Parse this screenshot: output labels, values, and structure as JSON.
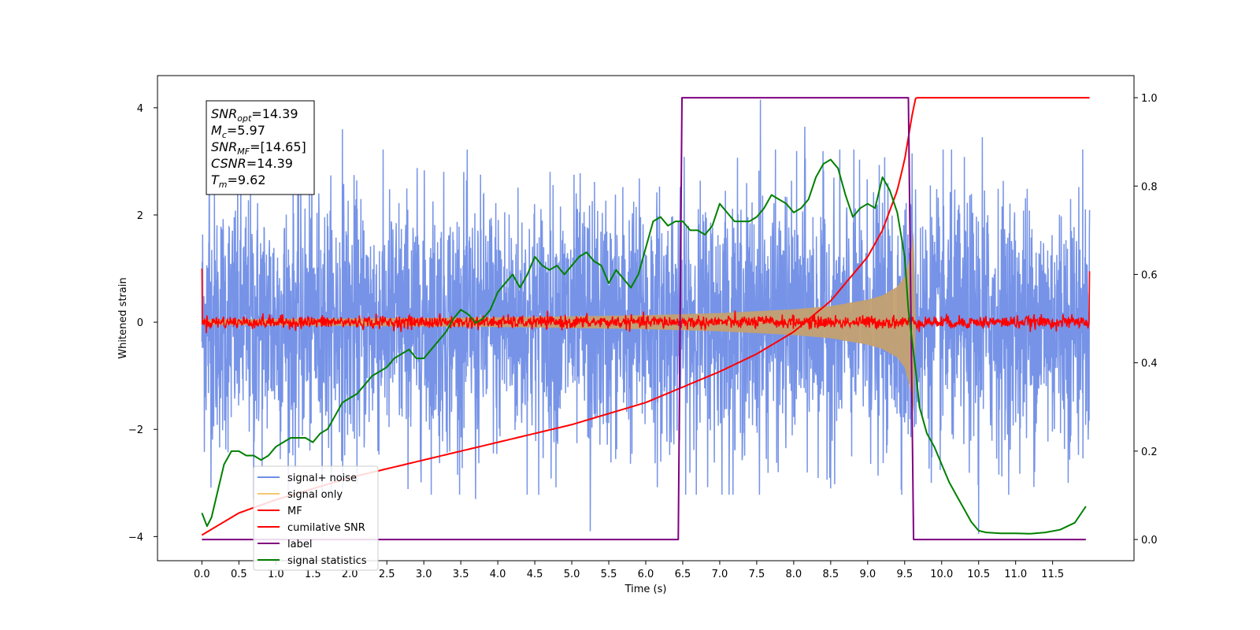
{
  "chart_data": {
    "type": "line",
    "xlabel": "Time (s)",
    "ylabel": "Whitened strain",
    "xlim": [
      -0.6,
      12.6
    ],
    "ylim_left": [
      -4.45,
      4.6
    ],
    "ylim_right": [
      -0.048,
      1.05
    ],
    "x_ticks": [
      0.0,
      0.5,
      1.0,
      1.5,
      2.0,
      2.5,
      3.0,
      3.5,
      4.0,
      4.5,
      5.0,
      5.5,
      6.0,
      6.5,
      7.0,
      7.5,
      8.0,
      8.5,
      9.0,
      9.5,
      10.0,
      10.5,
      11.0,
      11.5
    ],
    "x_tick_labels": [
      "0.0",
      "0.5",
      "1.0",
      "1.5",
      "2.0",
      "2.5",
      "3.0",
      "3.5",
      "4.0",
      "4.5",
      "5.0",
      "5.5",
      "6.0",
      "6.5",
      "7.0",
      "7.5",
      "8.0",
      "8.5",
      "9.0",
      "9.5",
      "10.0",
      "10.5",
      "11.0",
      "11.5"
    ],
    "y_ticks_left": [
      -4,
      -2,
      0,
      2,
      4
    ],
    "y_tick_labels_left": [
      "−4",
      "−2",
      "0",
      "2",
      "4"
    ],
    "y_ticks_right": [
      0.0,
      0.2,
      0.4,
      0.6,
      0.8,
      1.0
    ],
    "y_tick_labels_right": [
      "0.0",
      "0.2",
      "0.4",
      "0.6",
      "0.8",
      "1.0"
    ],
    "grid": false,
    "legend_position": "lower-left",
    "info_box": {
      "lines": [
        {
          "sym": "SNR",
          "sub": "opt",
          "val": "=14.39"
        },
        {
          "sym": "M",
          "sub": "c",
          "val": "=5.97"
        },
        {
          "sym": "SNR",
          "sub": "MF",
          "val": "=[14.65]"
        },
        {
          "sym": "CSNR",
          "sub": "",
          "val": "=14.39"
        },
        {
          "sym": "T",
          "sub": "m",
          "val": "=9.62"
        }
      ]
    },
    "series": [
      {
        "name": "signal+ noise",
        "color": "#6f8de6",
        "axis": "left",
        "kind": "noise_band",
        "x_range": [
          0.0,
          12.0
        ],
        "amplitude_envelope": {
          "x": [
            0.0,
            12.0
          ],
          "max": [
            2.8,
            2.8
          ],
          "min": [
            -2.8,
            -2.8
          ]
        },
        "peak_values": [
          {
            "x": 0.1,
            "y": 3.25
          },
          {
            "x": 0.7,
            "y": -3.3
          },
          {
            "x": 1.9,
            "y": 3.6
          },
          {
            "x": 3.7,
            "y": -3.3
          },
          {
            "x": 5.25,
            "y": -3.9
          },
          {
            "x": 7.55,
            "y": 4.15
          },
          {
            "x": 8.15,
            "y": 3.65
          },
          {
            "x": 9.6,
            "y": 3.15
          },
          {
            "x": 10.5,
            "y": -3.95
          },
          {
            "x": 10.55,
            "y": 3.45
          }
        ]
      },
      {
        "name": "signal only",
        "color": "#f5c86e",
        "axis": "left",
        "kind": "chirp_envelope",
        "x": [
          0.0,
          2.0,
          4.0,
          5.0,
          6.0,
          7.0,
          8.0,
          8.5,
          9.0,
          9.2,
          9.4,
          9.5,
          9.55,
          9.6,
          9.62
        ],
        "amplitude": [
          0.05,
          0.07,
          0.09,
          0.11,
          0.13,
          0.17,
          0.24,
          0.3,
          0.42,
          0.5,
          0.66,
          0.85,
          1.1,
          1.4,
          1.7
        ]
      },
      {
        "name": "MF",
        "color": "#ff0000",
        "axis": "left",
        "kind": "noise_band",
        "x_range": [
          0.0,
          12.0
        ],
        "amplitude": 0.12,
        "edge_values": [
          {
            "x": 0.0,
            "y": 1.0
          },
          {
            "x": 12.0,
            "y": 0.95
          }
        ]
      },
      {
        "name": "cumilative SNR",
        "color": "#ff0000",
        "axis": "right",
        "x": [
          0.0,
          0.5,
          1.0,
          2.0,
          3.0,
          4.0,
          5.0,
          6.0,
          7.0,
          7.5,
          8.0,
          8.5,
          9.0,
          9.2,
          9.4,
          9.5,
          9.55,
          9.6,
          9.65,
          12.0
        ],
        "y": [
          0.01,
          0.06,
          0.09,
          0.14,
          0.18,
          0.22,
          0.26,
          0.31,
          0.38,
          0.42,
          0.47,
          0.54,
          0.64,
          0.7,
          0.79,
          0.86,
          0.91,
          0.96,
          1.0,
          1.0
        ]
      },
      {
        "name": "label",
        "color": "#800080",
        "axis": "right",
        "x": [
          0.0,
          6.44,
          6.49,
          9.55,
          9.62,
          11.95
        ],
        "y": [
          0.0,
          0.0,
          1.0,
          1.0,
          0.0,
          0.0
        ]
      },
      {
        "name": "signal statistics",
        "color": "#008000",
        "axis": "right",
        "x": [
          0.0,
          0.07,
          0.13,
          0.2,
          0.3,
          0.4,
          0.5,
          0.6,
          0.7,
          0.8,
          0.9,
          1.0,
          1.1,
          1.2,
          1.3,
          1.4,
          1.5,
          1.6,
          1.7,
          1.8,
          1.9,
          2.0,
          2.1,
          2.2,
          2.3,
          2.4,
          2.5,
          2.6,
          2.7,
          2.8,
          2.9,
          3.0,
          3.1,
          3.2,
          3.3,
          3.4,
          3.5,
          3.6,
          3.7,
          3.8,
          3.9,
          4.0,
          4.1,
          4.2,
          4.3,
          4.4,
          4.5,
          4.6,
          4.7,
          4.8,
          4.9,
          5.0,
          5.1,
          5.2,
          5.3,
          5.4,
          5.5,
          5.6,
          5.7,
          5.8,
          5.9,
          6.0,
          6.1,
          6.2,
          6.3,
          6.4,
          6.5,
          6.6,
          6.7,
          6.8,
          6.9,
          7.0,
          7.1,
          7.2,
          7.3,
          7.4,
          7.5,
          7.6,
          7.7,
          7.8,
          7.9,
          8.0,
          8.1,
          8.2,
          8.3,
          8.4,
          8.5,
          8.6,
          8.7,
          8.8,
          8.9,
          9.0,
          9.1,
          9.2,
          9.3,
          9.4,
          9.5,
          9.55,
          9.6,
          9.65,
          9.7,
          9.8,
          9.9,
          10.0,
          10.1,
          10.2,
          10.3,
          10.4,
          10.5,
          10.6,
          10.8,
          11.0,
          11.2,
          11.4,
          11.6,
          11.8,
          11.95
        ],
        "y": [
          0.06,
          0.03,
          0.05,
          0.1,
          0.17,
          0.2,
          0.2,
          0.19,
          0.19,
          0.18,
          0.19,
          0.21,
          0.22,
          0.23,
          0.23,
          0.23,
          0.22,
          0.24,
          0.25,
          0.28,
          0.31,
          0.32,
          0.33,
          0.35,
          0.37,
          0.38,
          0.39,
          0.41,
          0.42,
          0.43,
          0.41,
          0.41,
          0.43,
          0.45,
          0.47,
          0.5,
          0.52,
          0.51,
          0.49,
          0.5,
          0.52,
          0.56,
          0.58,
          0.6,
          0.57,
          0.6,
          0.64,
          0.62,
          0.61,
          0.62,
          0.6,
          0.62,
          0.64,
          0.65,
          0.63,
          0.62,
          0.58,
          0.61,
          0.59,
          0.57,
          0.6,
          0.66,
          0.72,
          0.73,
          0.71,
          0.72,
          0.72,
          0.7,
          0.7,
          0.69,
          0.71,
          0.76,
          0.74,
          0.72,
          0.72,
          0.72,
          0.73,
          0.75,
          0.78,
          0.77,
          0.76,
          0.74,
          0.75,
          0.77,
          0.82,
          0.85,
          0.86,
          0.84,
          0.78,
          0.73,
          0.75,
          0.76,
          0.75,
          0.82,
          0.79,
          0.74,
          0.64,
          0.52,
          0.45,
          0.38,
          0.3,
          0.24,
          0.21,
          0.17,
          0.13,
          0.1,
          0.07,
          0.04,
          0.02,
          0.016,
          0.014,
          0.014,
          0.013,
          0.016,
          0.022,
          0.038,
          0.075
        ]
      }
    ]
  }
}
